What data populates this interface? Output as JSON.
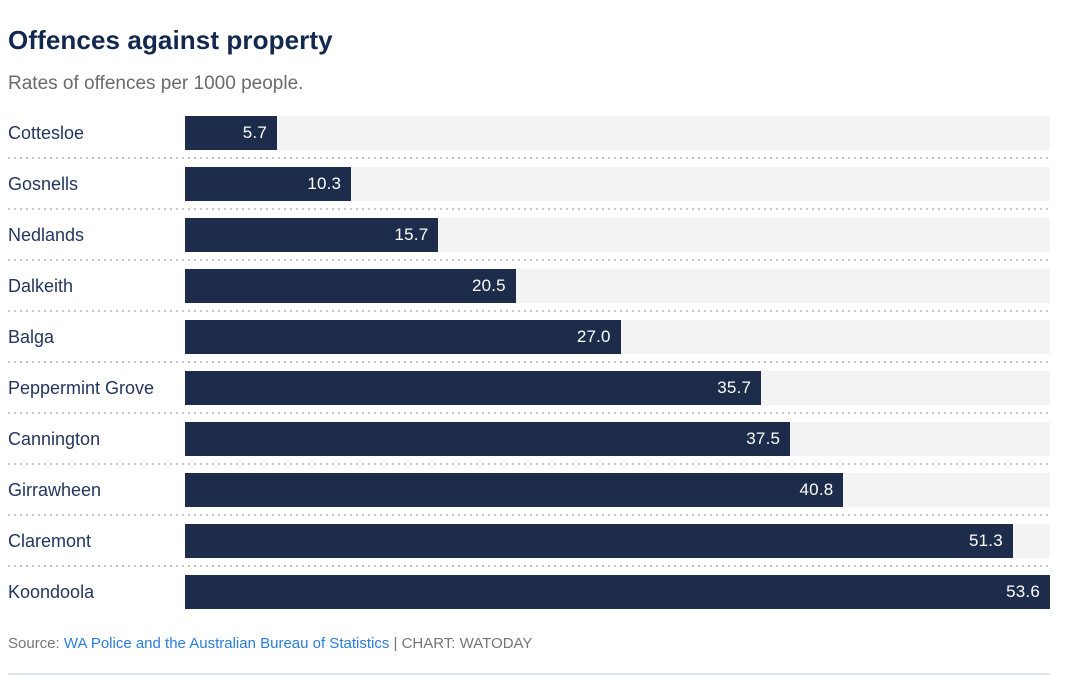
{
  "header": {
    "title": "Offences against property",
    "subtitle": "Rates of offences per 1000 people."
  },
  "chart_data": {
    "type": "bar",
    "orientation": "horizontal",
    "title": "Offences against property",
    "subtitle": "Rates of offences per 1000 people.",
    "categories": [
      "Cottesloe",
      "Gosnells",
      "Nedlands",
      "Dalkeith",
      "Balga",
      "Peppermint Grove",
      "Cannington",
      "Girrawheen",
      "Claremont",
      "Koondoola"
    ],
    "values": [
      5.7,
      10.3,
      15.7,
      20.5,
      27.0,
      35.7,
      37.5,
      40.8,
      51.3,
      53.6
    ],
    "value_labels": [
      "5.7",
      "10.3",
      "15.7",
      "20.5",
      "27.0",
      "35.7",
      "37.5",
      "40.8",
      "51.3",
      "53.6"
    ],
    "xlabel": "",
    "ylabel": "",
    "xlim": [
      0,
      53.6
    ],
    "grid": false,
    "legend": false,
    "value_label_position": "inside-end",
    "bar_color": "#1e2c4c",
    "track_color": "#f3f3f3"
  },
  "footer": {
    "source_prefix": "Source:",
    "source_link": "WA Police and the Australian Bureau of Statistics",
    "separator": "|",
    "chart_credit": "CHART: WATODAY"
  },
  "colors": {
    "title": "#13284e",
    "category_label": "#24365e",
    "bar": "#1e2c4c",
    "bar_track": "#f3f3f3",
    "value_label": "#ffffff",
    "subtitle": "#6b6b6b",
    "source_text": "#757575",
    "source_link": "#2b7ce0",
    "row_separator": "#c9c9c9",
    "bottom_rule": "#dfe5ec"
  }
}
